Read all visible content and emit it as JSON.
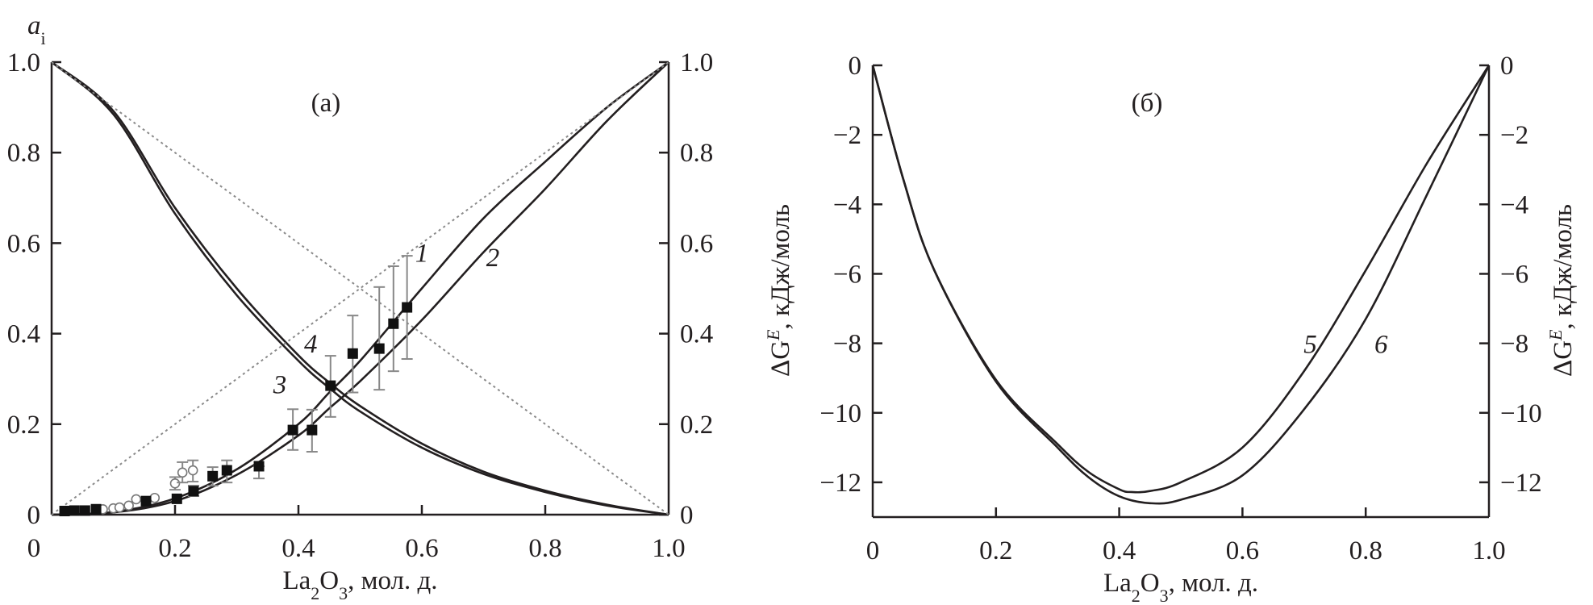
{
  "chart_data": [
    {
      "type": "line",
      "panel_label": "(а)",
      "ylabel_parts": [
        "a",
        "i"
      ],
      "xlabel_parts": [
        "La",
        "2",
        "O",
        "3",
        ", мол. д."
      ],
      "xlim": [
        0,
        1.0
      ],
      "ylim": [
        0,
        1.0
      ],
      "xticks": [
        "0",
        "0.2",
        "0.4",
        "0.6",
        "0.8",
        "1.0"
      ],
      "xtick_values": [
        0,
        0.2,
        0.4,
        0.6,
        0.8,
        1.0
      ],
      "yticks": [
        "0",
        "0.2",
        "0.4",
        "0.6",
        "0.8",
        "1.0"
      ],
      "ytick_values": [
        0,
        0.2,
        0.4,
        0.6,
        0.8,
        1.0
      ],
      "grid": false,
      "series": [
        {
          "name": "1",
          "style": "solid",
          "x": [
            0,
            0.1,
            0.2,
            0.3,
            0.4,
            0.45,
            0.5,
            0.6,
            0.7,
            0.8,
            0.9,
            1.0
          ],
          "y": [
            0,
            0.006,
            0.036,
            0.1,
            0.2,
            0.27,
            0.34,
            0.5,
            0.655,
            0.78,
            0.9,
            1.0
          ],
          "label_at": [
            0.6,
            0.58
          ]
        },
        {
          "name": "2",
          "style": "solid",
          "x": [
            0,
            0.1,
            0.2,
            0.3,
            0.4,
            0.45,
            0.5,
            0.6,
            0.7,
            0.8,
            0.9,
            1.0
          ],
          "y": [
            0,
            0.005,
            0.03,
            0.088,
            0.175,
            0.235,
            0.295,
            0.43,
            0.58,
            0.72,
            0.87,
            1.0
          ],
          "label_at": [
            0.715,
            0.57
          ]
        },
        {
          "name": "3",
          "style": "solid",
          "x": [
            0,
            0.1,
            0.2,
            0.3,
            0.4,
            0.45,
            0.5,
            0.6,
            0.7,
            0.8,
            0.9,
            1.0
          ],
          "y": [
            1.0,
            0.885,
            0.665,
            0.485,
            0.34,
            0.28,
            0.228,
            0.148,
            0.09,
            0.05,
            0.02,
            0
          ],
          "label_at": [
            0.37,
            0.29
          ]
        },
        {
          "name": "4",
          "style": "solid",
          "x": [
            0,
            0.1,
            0.2,
            0.3,
            0.4,
            0.45,
            0.5,
            0.6,
            0.7,
            0.8,
            0.9,
            1.0
          ],
          "y": [
            1.0,
            0.892,
            0.678,
            0.5,
            0.352,
            0.292,
            0.24,
            0.157,
            0.095,
            0.053,
            0.022,
            0
          ],
          "label_at": [
            0.42,
            0.38
          ]
        },
        {
          "name": "ideal-increasing",
          "style": "dotted",
          "x": [
            0,
            1.0
          ],
          "y": [
            0,
            1.0
          ]
        },
        {
          "name": "ideal-decreasing",
          "style": "dotted",
          "x": [
            0,
            1.0
          ],
          "y": [
            1.0,
            0
          ]
        }
      ],
      "points_filled": [
        {
          "x": 0.021,
          "y": 0.008
        },
        {
          "x": 0.037,
          "y": 0.009
        },
        {
          "x": 0.054,
          "y": 0.009
        },
        {
          "x": 0.072,
          "y": 0.012
        },
        {
          "x": 0.153,
          "y": 0.03
        },
        {
          "x": 0.203,
          "y": 0.035
        },
        {
          "x": 0.23,
          "y": 0.052,
          "lo": 0.041,
          "hi": 0.064
        },
        {
          "x": 0.261,
          "y": 0.085,
          "lo": 0.064,
          "hi": 0.105
        },
        {
          "x": 0.284,
          "y": 0.098,
          "lo": 0.071,
          "hi": 0.12
        },
        {
          "x": 0.336,
          "y": 0.107,
          "lo": 0.08,
          "hi": 0.107
        },
        {
          "x": 0.391,
          "y": 0.187,
          "lo": 0.143,
          "hi": 0.233
        },
        {
          "x": 0.422,
          "y": 0.187,
          "lo": 0.139,
          "hi": 0.232
        },
        {
          "x": 0.452,
          "y": 0.285,
          "lo": 0.216,
          "hi": 0.351
        },
        {
          "x": 0.488,
          "y": 0.356,
          "lo": 0.27,
          "hi": 0.44
        },
        {
          "x": 0.531,
          "y": 0.367,
          "lo": 0.276,
          "hi": 0.503
        },
        {
          "x": 0.554,
          "y": 0.422,
          "lo": 0.317,
          "hi": 0.549
        },
        {
          "x": 0.576,
          "y": 0.458,
          "lo": 0.344,
          "hi": 0.572
        }
      ],
      "points_open": [
        {
          "x": 0.083,
          "y": 0.012
        },
        {
          "x": 0.1,
          "y": 0.014
        },
        {
          "x": 0.11,
          "y": 0.016
        },
        {
          "x": 0.125,
          "y": 0.02
        },
        {
          "x": 0.137,
          "y": 0.034
        },
        {
          "x": 0.167,
          "y": 0.037
        },
        {
          "x": 0.2,
          "y": 0.069,
          "lo": 0.055,
          "hi": 0.083
        },
        {
          "x": 0.212,
          "y": 0.093,
          "lo": 0.071,
          "hi": 0.116
        },
        {
          "x": 0.229,
          "y": 0.098,
          "lo": 0.073,
          "hi": 0.12
        }
      ]
    },
    {
      "type": "line",
      "panel_label": "(б)",
      "ylabel_parts": [
        "ΔG",
        "E",
        ", кДж/моль"
      ],
      "xlabel_parts": [
        "La",
        "2",
        "O",
        "3",
        ", мол. д."
      ],
      "xlim": [
        0,
        1.0
      ],
      "ylim": [
        -13,
        0
      ],
      "xticks": [
        "0",
        "0.2",
        "0.4",
        "0.6",
        "0.8",
        "1.0"
      ],
      "xtick_values": [
        0,
        0.2,
        0.4,
        0.6,
        0.8,
        1.0
      ],
      "yticks": [
        "0",
        "−2",
        "−4",
        "−6",
        "−8",
        "−10",
        "−12"
      ],
      "ytick_values": [
        0,
        -2,
        -4,
        -6,
        -8,
        -10,
        -12
      ],
      "grid": false,
      "series": [
        {
          "name": "5",
          "style": "solid",
          "x": [
            0,
            0.05,
            0.1,
            0.2,
            0.3,
            0.35,
            0.4,
            0.42,
            0.45,
            0.5,
            0.6,
            0.7,
            0.8,
            0.9,
            1.0
          ],
          "y": [
            0,
            -3.3,
            -5.9,
            -9.05,
            -10.9,
            -11.7,
            -12.2,
            -12.28,
            -12.25,
            -12.0,
            -11.0,
            -8.8,
            -5.9,
            -2.8,
            0
          ],
          "label_at": [
            0.71,
            -8.0
          ]
        },
        {
          "name": "6",
          "style": "solid",
          "x": [
            0,
            0.05,
            0.1,
            0.2,
            0.3,
            0.35,
            0.4,
            0.45,
            0.5,
            0.6,
            0.7,
            0.8,
            0.9,
            1.0
          ],
          "y": [
            0,
            -3.3,
            -5.9,
            -9.1,
            -11.0,
            -11.85,
            -12.4,
            -12.6,
            -12.5,
            -11.8,
            -9.9,
            -7.3,
            -3.7,
            0
          ],
          "label_at": [
            0.825,
            -8.0
          ]
        }
      ]
    }
  ]
}
